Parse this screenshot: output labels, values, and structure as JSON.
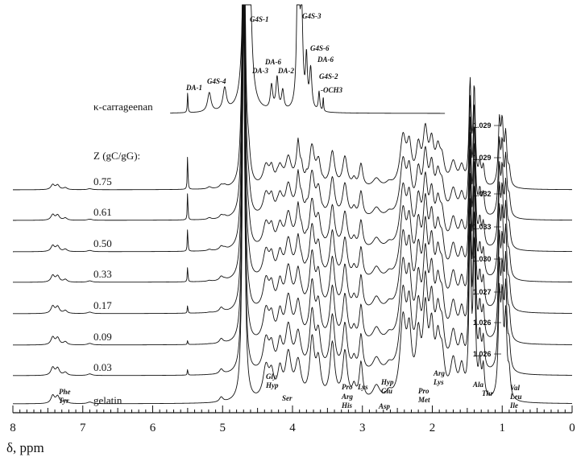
{
  "chart_data": {
    "type": "line",
    "title": "",
    "xlabel": "δ, ppm",
    "ylabel": "",
    "xlim": [
      8,
      0
    ],
    "x_reversed": true,
    "x_ticks": [
      "8",
      "7",
      "6",
      "5",
      "4",
      "3",
      "2",
      "1",
      "0"
    ],
    "grid": false,
    "legend": "none",
    "z_header": "Z (gC/gG):",
    "series": [
      {
        "name": "κ-carrageenan",
        "kind": "carrageenan"
      },
      {
        "name": "0.75",
        "kind": "mixture",
        "z": 0.75
      },
      {
        "name": "0.61",
        "kind": "mixture",
        "z": 0.61
      },
      {
        "name": "0.50",
        "kind": "mixture",
        "z": 0.5
      },
      {
        "name": "0.33",
        "kind": "mixture",
        "z": 0.33
      },
      {
        "name": "0.17",
        "kind": "mixture",
        "z": 0.17
      },
      {
        "name": "0.09",
        "kind": "mixture",
        "z": 0.09
      },
      {
        "name": "0.03",
        "kind": "mixture",
        "z": 0.03
      },
      {
        "name": "gelatin",
        "kind": "gelatin"
      }
    ],
    "methyl_shift_labels": [
      "1.029",
      "1.029",
      "1.032",
      "1.033",
      "1.030",
      "1.027",
      "1.026",
      "1.026"
    ],
    "carrageenan_peak_labels": [
      {
        "text": "DA-1",
        "ppm": 5.5
      },
      {
        "text": "G4S-4",
        "ppm": 4.97
      },
      {
        "text": "G4S-1",
        "ppm": 4.64
      },
      {
        "text": "DA-6",
        "ppm": 4.22
      },
      {
        "text": "DA-3",
        "ppm": 4.3
      },
      {
        "text": "DA-2",
        "ppm": 4.14
      },
      {
        "text": "G4S-3",
        "ppm": 3.91
      },
      {
        "text": "G4S-6",
        "ppm": 3.8
      },
      {
        "text": "DA-6",
        "ppm": 3.74
      },
      {
        "text": "G4S-2",
        "ppm": 3.61
      },
      {
        "text": "-OCH3",
        "ppm": 3.56
      }
    ],
    "gelatin_peak_labels": [
      {
        "text": "Phe",
        "ppm": 7.38
      },
      {
        "text": "Tyr",
        "ppm": 7.38
      },
      {
        "text": "Gly",
        "ppm": 4.08
      },
      {
        "text": "Hyp",
        "ppm": 4.08
      },
      {
        "text": "Ser",
        "ppm": 3.91
      },
      {
        "text": "Pro",
        "ppm": 3.4
      },
      {
        "text": "Arg",
        "ppm": 3.22
      },
      {
        "text": "His",
        "ppm": 3.22
      },
      {
        "text": "Lys",
        "ppm": 3.02
      },
      {
        "text": "Asp",
        "ppm": 2.8
      },
      {
        "text": "Hyp",
        "ppm": 2.38
      },
      {
        "text": "Glu",
        "ppm": 2.38
      },
      {
        "text": "Pro",
        "ppm": 2.02
      },
      {
        "text": "Met",
        "ppm": 2.02
      },
      {
        "text": "Arg",
        "ppm": 1.68
      },
      {
        "text": "Lys",
        "ppm": 1.68
      },
      {
        "text": "Ala",
        "ppm": 1.42
      },
      {
        "text": "Thr",
        "ppm": 1.32
      },
      {
        "text": "Val",
        "ppm": 1.0
      },
      {
        "text": "Leu",
        "ppm": 1.0
      },
      {
        "text": "Ile",
        "ppm": 1.0
      }
    ],
    "gelatin_peaks": [
      {
        "ppm": 7.43,
        "h": 10,
        "w": 0.03
      },
      {
        "ppm": 7.36,
        "h": 9,
        "w": 0.03
      },
      {
        "ppm": 7.25,
        "h": 4,
        "w": 0.03
      },
      {
        "ppm": 6.9,
        "h": 2,
        "w": 0.04
      },
      {
        "ppm": 5.02,
        "h": 6,
        "w": 0.03
      },
      {
        "ppm": 4.38,
        "h": 40,
        "w": 0.05
      },
      {
        "ppm": 4.3,
        "h": 28,
        "w": 0.04
      },
      {
        "ppm": 4.18,
        "h": 34,
        "w": 0.04
      },
      {
        "ppm": 4.06,
        "h": 55,
        "w": 0.05
      },
      {
        "ppm": 3.92,
        "h": 45,
        "w": 0.05
      },
      {
        "ppm": 3.72,
        "h": 72,
        "w": 0.04
      },
      {
        "ppm": 3.63,
        "h": 45,
        "w": 0.04
      },
      {
        "ppm": 3.43,
        "h": 70,
        "w": 0.04
      },
      {
        "ppm": 3.25,
        "h": 60,
        "w": 0.04
      },
      {
        "ppm": 3.12,
        "h": 15,
        "w": 0.03
      },
      {
        "ppm": 3.02,
        "h": 46,
        "w": 0.03
      },
      {
        "ppm": 2.8,
        "h": 18,
        "w": 0.06
      },
      {
        "ppm": 2.62,
        "h": 8,
        "w": 0.05
      },
      {
        "ppm": 2.42,
        "h": 95,
        "w": 0.05
      },
      {
        "ppm": 2.33,
        "h": 72,
        "w": 0.04
      },
      {
        "ppm": 2.2,
        "h": 70,
        "w": 0.04
      },
      {
        "ppm": 2.1,
        "h": 100,
        "w": 0.04
      },
      {
        "ppm": 2.01,
        "h": 76,
        "w": 0.04
      },
      {
        "ppm": 1.92,
        "h": 60,
        "w": 0.04
      },
      {
        "ppm": 1.86,
        "h": 44,
        "w": 0.04
      },
      {
        "ppm": 1.7,
        "h": 46,
        "w": 0.05
      },
      {
        "ppm": 1.58,
        "h": 36,
        "w": 0.04
      },
      {
        "ppm": 1.46,
        "h": 200,
        "w": 0.018
      },
      {
        "ppm": 1.4,
        "h": 190,
        "w": 0.018
      },
      {
        "ppm": 1.32,
        "h": 40,
        "w": 0.02
      },
      {
        "ppm": 1.27,
        "h": 38,
        "w": 0.02
      },
      {
        "ppm": 1.04,
        "h": 120,
        "w": 0.02
      },
      {
        "ppm": 1.0,
        "h": 110,
        "w": 0.02
      },
      {
        "ppm": 0.95,
        "h": 95,
        "w": 0.02
      },
      {
        "ppm": 0.9,
        "h": 30,
        "w": 0.02
      }
    ],
    "carrageenan_peaks": [
      {
        "ppm": 5.5,
        "h": 25,
        "w": 0.006
      },
      {
        "ppm": 5.19,
        "h": 24,
        "w": 0.03
      },
      {
        "ppm": 4.97,
        "h": 28,
        "w": 0.03
      },
      {
        "ppm": 4.68,
        "h": 400,
        "w": 0.022
      },
      {
        "ppm": 4.63,
        "h": 300,
        "w": 0.03
      },
      {
        "ppm": 4.3,
        "h": 30,
        "w": 0.02
      },
      {
        "ppm": 4.22,
        "h": 40,
        "w": 0.02
      },
      {
        "ppm": 4.14,
        "h": 24,
        "w": 0.02
      },
      {
        "ppm": 3.92,
        "h": 250,
        "w": 0.018
      },
      {
        "ppm": 3.87,
        "h": 120,
        "w": 0.02
      },
      {
        "ppm": 3.8,
        "h": 60,
        "w": 0.015
      },
      {
        "ppm": 3.74,
        "h": 50,
        "w": 0.02
      },
      {
        "ppm": 3.62,
        "h": 24,
        "w": 0.012
      },
      {
        "ppm": 3.56,
        "h": 18,
        "w": 0.006
      }
    ],
    "water_peak": {
      "ppm": 4.7
    }
  }
}
